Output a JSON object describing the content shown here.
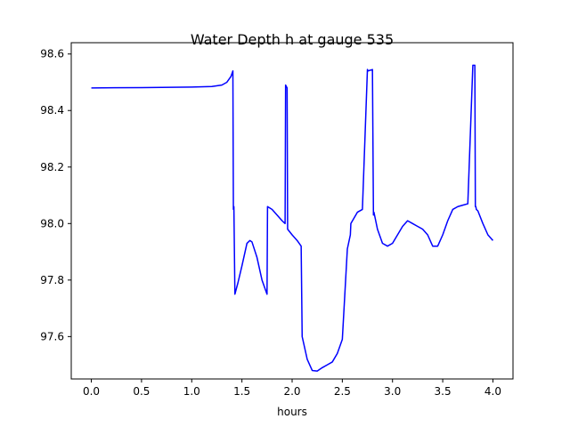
{
  "chart_data": {
    "type": "line",
    "title": "Water Depth h at gauge 535",
    "xlabel": "hours",
    "ylabel": "",
    "xlim": [
      -0.2,
      4.2
    ],
    "ylim": [
      97.45,
      98.64
    ],
    "xticks": [
      0.0,
      0.5,
      1.0,
      1.5,
      2.0,
      2.5,
      3.0,
      3.5,
      4.0
    ],
    "xtick_labels": [
      "0.0",
      "0.5",
      "1.0",
      "1.5",
      "2.0",
      "2.5",
      "3.0",
      "3.5",
      "4.0"
    ],
    "yticks": [
      97.6,
      97.8,
      98.0,
      98.2,
      98.4,
      98.6
    ],
    "ytick_labels": [
      "97.6",
      "97.8",
      "98.0",
      "98.2",
      "98.4",
      "98.6"
    ],
    "grid": false,
    "line_color": "#0000ff",
    "series": [
      {
        "x": [
          0.0,
          0.5,
          1.0,
          1.2,
          1.3,
          1.35,
          1.39,
          1.41,
          1.415,
          1.42,
          1.43,
          1.46,
          1.5,
          1.55,
          1.58,
          1.6,
          1.65,
          1.7,
          1.75,
          1.755,
          1.8,
          1.85,
          1.9,
          1.93,
          1.935,
          1.95,
          1.955,
          2.0,
          2.05,
          2.09,
          2.1,
          2.15,
          2.2,
          2.25,
          2.3,
          2.35,
          2.4,
          2.45,
          2.5,
          2.55,
          2.58,
          2.585,
          2.65,
          2.7,
          2.75,
          2.755,
          2.8,
          2.81,
          2.815,
          2.85,
          2.9,
          2.95,
          3.0,
          3.05,
          3.1,
          3.15,
          3.2,
          3.25,
          3.3,
          3.35,
          3.4,
          3.45,
          3.5,
          3.55,
          3.6,
          3.65,
          3.7,
          3.75,
          3.8,
          3.82,
          3.825,
          3.83,
          3.835,
          3.85,
          3.9,
          3.95,
          4.0
        ],
        "values": [
          98.48,
          98.481,
          98.483,
          98.485,
          98.49,
          98.5,
          98.52,
          98.54,
          98.05,
          98.06,
          97.75,
          97.79,
          97.85,
          97.93,
          97.94,
          97.935,
          97.88,
          97.8,
          97.75,
          98.06,
          98.05,
          98.03,
          98.01,
          98.0,
          98.49,
          98.48,
          97.98,
          97.96,
          97.94,
          97.92,
          97.6,
          97.52,
          97.48,
          97.478,
          97.49,
          97.5,
          97.51,
          97.54,
          97.59,
          97.91,
          97.96,
          98.0,
          98.04,
          98.05,
          98.545,
          98.54,
          98.545,
          98.03,
          98.04,
          97.98,
          97.93,
          97.92,
          97.93,
          97.96,
          97.99,
          98.01,
          98.0,
          97.99,
          97.98,
          97.96,
          97.92,
          97.92,
          97.96,
          98.01,
          98.05,
          98.06,
          98.065,
          98.07,
          98.56,
          98.56,
          98.06,
          98.06,
          98.05,
          98.045,
          98.0,
          97.96,
          97.94
        ]
      }
    ]
  }
}
